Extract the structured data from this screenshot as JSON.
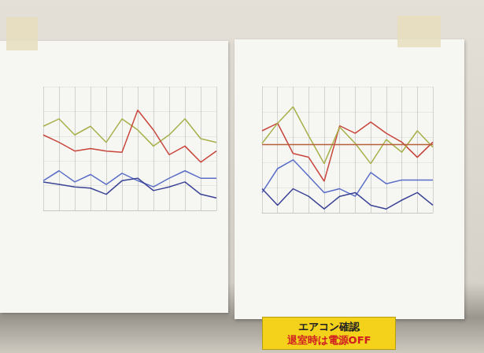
{
  "chart_data": [
    {
      "type": "line",
      "grid": true,
      "tick_labels": false,
      "categories": [
        null,
        null,
        null,
        null,
        null,
        null,
        null,
        null,
        null,
        null,
        null,
        null
      ],
      "ylim": [
        0,
        100
      ],
      "yticks": [
        0,
        20,
        40,
        60,
        80,
        100
      ],
      "series": [
        {
          "color": "#a8b04a",
          "values": [
            68,
            74,
            61,
            68,
            55,
            74,
            65,
            52,
            61,
            74,
            58,
            55
          ]
        },
        {
          "color": "#c8463c",
          "values": [
            61,
            55,
            48,
            50,
            48,
            47,
            81,
            65,
            45,
            52,
            39,
            48
          ]
        },
        {
          "color": "#5a6ec8",
          "values": [
            24,
            32,
            23,
            29,
            21,
            30,
            24,
            19,
            26,
            32,
            26,
            26
          ]
        },
        {
          "color": "#3c4496",
          "values": [
            23,
            21,
            19,
            18,
            13,
            24,
            26,
            16,
            19,
            23,
            13,
            10
          ]
        }
      ]
    },
    {
      "type": "line",
      "grid": true,
      "tick_labels": false,
      "categories": [
        null,
        null,
        null,
        null,
        null,
        null,
        null,
        null,
        null,
        null,
        null,
        null
      ],
      "ylim": [
        0,
        100
      ],
      "yticks": [
        0,
        20,
        40,
        60,
        80,
        100
      ],
      "series": [
        {
          "color": "#c8463c",
          "values": [
            65,
            71,
            47,
            44,
            25,
            69,
            63,
            72,
            63,
            56,
            44,
            56
          ]
        },
        {
          "color": "#a8b04a",
          "values": [
            55,
            71,
            84,
            61,
            39,
            68,
            55,
            39,
            58,
            48,
            65,
            52
          ]
        },
        {
          "color": "#b8603a",
          "values": [
            54,
            54,
            54,
            54,
            54,
            54,
            54,
            54,
            54,
            54,
            54,
            54
          ]
        },
        {
          "color": "#5a6ec8",
          "values": [
            16,
            35,
            42,
            29,
            16,
            19,
            13,
            32,
            23,
            26,
            26,
            26
          ]
        },
        {
          "color": "#3c4496",
          "values": [
            19,
            6,
            19,
            13,
            3,
            13,
            16,
            6,
            3,
            10,
            16,
            6
          ]
        }
      ]
    }
  ],
  "sign": {
    "lines": [
      {
        "text": "エアコン確認",
        "color": "#222222"
      },
      {
        "text": "退室時は電源OFF",
        "color": "#d02020"
      }
    ]
  }
}
